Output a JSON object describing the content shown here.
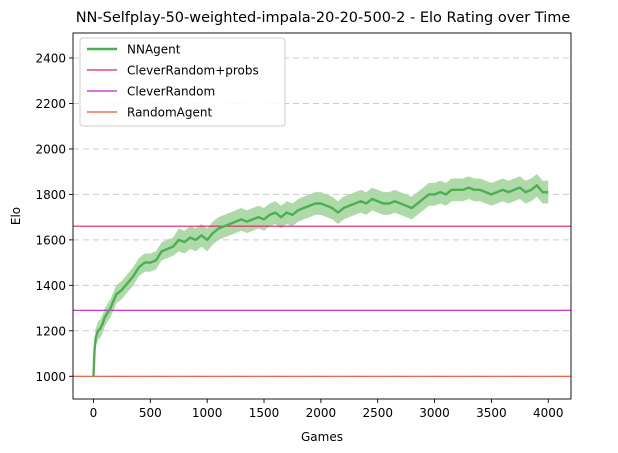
{
  "chart_data": {
    "type": "line",
    "title": "NN-Selfplay-50-weighted-impala-20-20-500-2 - Elo Rating over Time",
    "xlabel": "Games",
    "ylabel": "Elo",
    "xlim": [
      -180,
      4200
    ],
    "ylim": [
      900,
      2510
    ],
    "xticks": [
      0,
      500,
      1000,
      1500,
      2000,
      2500,
      3000,
      3500,
      4000
    ],
    "yticks": [
      1000,
      1200,
      1400,
      1600,
      1800,
      2000,
      2200,
      2400
    ],
    "grid": "y-dashed",
    "legend_position": "top-left",
    "series": [
      {
        "name": "NNAgent",
        "color": "#4caf50",
        "band_color": "#a5d6a0",
        "x": [
          0,
          10,
          20,
          40,
          60,
          80,
          100,
          150,
          200,
          250,
          300,
          350,
          400,
          450,
          500,
          550,
          600,
          650,
          700,
          750,
          800,
          850,
          900,
          950,
          1000,
          1050,
          1100,
          1150,
          1200,
          1250,
          1300,
          1350,
          1400,
          1450,
          1500,
          1550,
          1600,
          1650,
          1700,
          1750,
          1800,
          1850,
          1900,
          1950,
          2000,
          2050,
          2100,
          2150,
          2200,
          2250,
          2300,
          2350,
          2400,
          2450,
          2500,
          2550,
          2600,
          2650,
          2700,
          2750,
          2800,
          2850,
          2900,
          2950,
          3000,
          3050,
          3100,
          3150,
          3200,
          3250,
          3300,
          3350,
          3400,
          3450,
          3500,
          3550,
          3600,
          3650,
          3700,
          3750,
          3800,
          3850,
          3900,
          3950,
          4000
        ],
        "y": [
          1000,
          1120,
          1170,
          1200,
          1210,
          1230,
          1260,
          1300,
          1360,
          1380,
          1410,
          1440,
          1480,
          1500,
          1500,
          1510,
          1550,
          1560,
          1570,
          1600,
          1590,
          1610,
          1600,
          1620,
          1600,
          1630,
          1650,
          1660,
          1670,
          1680,
          1690,
          1680,
          1690,
          1700,
          1690,
          1710,
          1720,
          1700,
          1720,
          1710,
          1730,
          1740,
          1750,
          1760,
          1760,
          1750,
          1740,
          1720,
          1740,
          1750,
          1760,
          1770,
          1760,
          1780,
          1770,
          1760,
          1760,
          1770,
          1760,
          1750,
          1740,
          1760,
          1780,
          1800,
          1800,
          1810,
          1800,
          1820,
          1820,
          1820,
          1830,
          1820,
          1820,
          1810,
          1800,
          1810,
          1820,
          1810,
          1820,
          1830,
          1810,
          1820,
          1840,
          1810,
          1810
        ],
        "band": [
          0,
          25,
          40,
          40,
          40,
          40,
          40,
          40,
          40,
          40,
          40,
          40,
          40,
          40,
          40,
          40,
          40,
          40,
          40,
          50,
          50,
          50,
          50,
          50,
          50,
          50,
          50,
          50,
          50,
          50,
          50,
          50,
          50,
          50,
          50,
          50,
          50,
          50,
          50,
          50,
          50,
          50,
          50,
          50,
          50,
          50,
          50,
          50,
          50,
          50,
          50,
          50,
          50,
          50,
          50,
          50,
          50,
          50,
          50,
          50,
          50,
          50,
          50,
          50,
          50,
          50,
          50,
          50,
          50,
          50,
          50,
          50,
          50,
          50,
          50,
          50,
          50,
          50,
          50,
          50,
          50,
          50,
          50,
          50,
          50
        ]
      },
      {
        "name": "CleverRandom+probs",
        "color": "#e0206a",
        "hline": 1660
      },
      {
        "name": "CleverRandom",
        "color": "#c020c8",
        "hline": 1290
      },
      {
        "name": "RandomAgent",
        "color": "#e8543a",
        "hline": 1000
      }
    ]
  }
}
